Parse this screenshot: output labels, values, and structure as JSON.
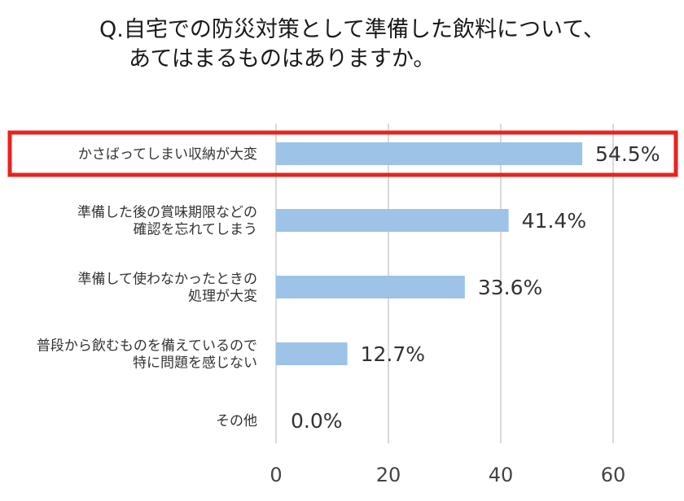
{
  "title": {
    "line1": "Q.自宅での防災対策として準備した飲料について、",
    "line2": "あてはまるものはありますか。"
  },
  "chart_data": {
    "type": "bar",
    "orientation": "horizontal",
    "categories": [
      [
        "かさばってしまい収納が大変"
      ],
      [
        "準備した後の賞味期限などの",
        "確認を忘れてしまう"
      ],
      [
        "準備して使わなかったときの",
        "処理が大変"
      ],
      [
        "普段から飲むものを備えているので",
        "特に問題を感じない"
      ],
      [
        "その他"
      ]
    ],
    "values": [
      54.5,
      41.4,
      33.6,
      12.7,
      0.0
    ],
    "value_labels": [
      "54.5%",
      "41.4%",
      "33.6%",
      "12.7%",
      "0.0%"
    ],
    "xlim": [
      0,
      70
    ],
    "xticks": [
      0,
      20,
      40,
      60
    ],
    "grid": "vertical",
    "bar_color": "#9dc3e6",
    "grid_color": "#d9d9d9",
    "highlight_color": "#e8231d",
    "highlight_index": 0
  }
}
